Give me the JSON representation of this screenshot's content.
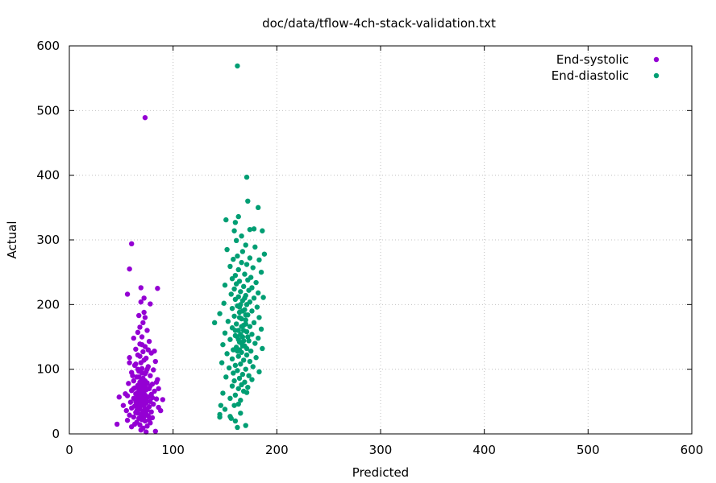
{
  "chart_data": {
    "type": "scatter",
    "title": "doc/data/tflow-4ch-stack-validation.txt",
    "xlabel": "Predicted",
    "ylabel": "Actual",
    "xlim": [
      0,
      600
    ],
    "ylim": [
      0,
      600
    ],
    "xticks": [
      0,
      100,
      200,
      300,
      400,
      500,
      600
    ],
    "yticks": [
      0,
      100,
      200,
      300,
      400,
      500,
      600
    ],
    "grid": true,
    "legend_position": "top-right",
    "series": [
      {
        "name": "End-systolic",
        "color": "#9400d3",
        "points": [
          [
            73,
            489
          ],
          [
            60,
            294
          ],
          [
            58,
            255
          ],
          [
            69,
            226
          ],
          [
            85,
            225
          ],
          [
            56,
            216
          ],
          [
            72,
            210
          ],
          [
            78,
            201
          ],
          [
            69,
            204
          ],
          [
            72,
            188
          ],
          [
            67,
            183
          ],
          [
            73,
            180
          ],
          [
            71,
            172
          ],
          [
            68,
            165
          ],
          [
            75,
            160
          ],
          [
            66,
            157
          ],
          [
            70,
            150
          ],
          [
            62,
            148
          ],
          [
            77,
            143
          ],
          [
            68,
            139
          ],
          [
            73,
            135
          ],
          [
            64,
            131
          ],
          [
            71,
            127
          ],
          [
            79,
            125
          ],
          [
            66,
            122
          ],
          [
            58,
            118
          ],
          [
            74,
            117
          ],
          [
            83,
            112
          ],
          [
            69,
            110
          ],
          [
            63,
            106
          ],
          [
            76,
            104
          ],
          [
            70,
            101
          ],
          [
            81,
            99
          ],
          [
            67,
            97
          ],
          [
            60,
            95
          ],
          [
            73,
            93
          ],
          [
            78,
            90
          ],
          [
            65,
            88
          ],
          [
            71,
            86
          ],
          [
            85,
            84
          ],
          [
            62,
            82
          ],
          [
            68,
            80
          ],
          [
            75,
            79
          ],
          [
            57,
            78
          ],
          [
            80,
            77
          ],
          [
            66,
            75
          ],
          [
            72,
            74
          ],
          [
            69,
            72
          ],
          [
            63,
            71
          ],
          [
            77,
            70
          ],
          [
            74,
            68
          ],
          [
            60,
            67
          ],
          [
            82,
            66
          ],
          [
            67,
            65
          ],
          [
            70,
            63
          ],
          [
            64,
            62
          ],
          [
            79,
            61
          ],
          [
            73,
            60
          ],
          [
            56,
            59
          ],
          [
            68,
            58
          ],
          [
            76,
            57
          ],
          [
            48,
            57
          ],
          [
            71,
            56
          ],
          [
            62,
            55
          ],
          [
            84,
            54
          ],
          [
            66,
            53
          ],
          [
            74,
            52
          ],
          [
            69,
            51
          ],
          [
            78,
            50
          ],
          [
            59,
            49
          ],
          [
            72,
            48
          ],
          [
            65,
            47
          ],
          [
            81,
            46
          ],
          [
            67,
            45
          ],
          [
            70,
            44
          ],
          [
            63,
            43
          ],
          [
            77,
            42
          ],
          [
            86,
            41
          ],
          [
            60,
            40
          ],
          [
            73,
            39
          ],
          [
            68,
            38
          ],
          [
            75,
            37
          ],
          [
            55,
            36
          ],
          [
            71,
            35
          ],
          [
            79,
            34
          ],
          [
            64,
            33
          ],
          [
            66,
            32
          ],
          [
            74,
            31
          ],
          [
            69,
            30
          ],
          [
            58,
            29
          ],
          [
            76,
            28
          ],
          [
            72,
            27
          ],
          [
            62,
            26
          ],
          [
            80,
            25
          ],
          [
            67,
            24
          ],
          [
            70,
            22
          ],
          [
            56,
            21
          ],
          [
            73,
            20
          ],
          [
            65,
            18
          ],
          [
            78,
            17
          ],
          [
            46,
            15
          ],
          [
            68,
            14
          ],
          [
            75,
            12
          ],
          [
            60,
            11
          ],
          [
            71,
            9
          ],
          [
            83,
            4
          ],
          [
            74,
            3
          ],
          [
            69,
            6
          ],
          [
            63,
            15
          ],
          [
            77,
            22
          ],
          [
            70,
            28
          ],
          [
            65,
            36
          ],
          [
            72,
            44
          ],
          [
            68,
            52
          ],
          [
            74,
            58
          ],
          [
            66,
            64
          ],
          [
            71,
            70
          ],
          [
            69,
            76
          ],
          [
            73,
            82
          ],
          [
            67,
            88
          ],
          [
            70,
            94
          ],
          [
            75,
            100
          ],
          [
            64,
            108
          ],
          [
            72,
            114
          ],
          [
            68,
            120
          ],
          [
            76,
            130
          ],
          [
            70,
            138
          ],
          [
            62,
            70
          ],
          [
            78,
            74
          ],
          [
            64,
            50
          ],
          [
            80,
            56
          ],
          [
            66,
            40
          ],
          [
            88,
            36
          ],
          [
            90,
            53
          ],
          [
            54,
            62
          ],
          [
            61,
            90
          ],
          [
            84,
            80
          ],
          [
            52,
            44
          ],
          [
            86,
            70
          ],
          [
            58,
            110
          ],
          [
            82,
            128
          ],
          [
            66,
            100
          ],
          [
            74,
            96
          ],
          [
            70,
            84
          ],
          [
            72,
            66
          ],
          [
            68,
            46
          ],
          [
            74,
            48
          ],
          [
            66,
            58
          ],
          [
            70,
            72
          ],
          [
            72,
            78
          ],
          [
            68,
            62
          ],
          [
            71,
            54
          ],
          [
            69,
            68
          ],
          [
            73,
            74
          ],
          [
            67,
            70
          ],
          [
            71,
            60
          ],
          [
            69,
            56
          ]
        ]
      },
      {
        "name": "End-diastolic",
        "color": "#009e73",
        "points": [
          [
            162,
            569
          ],
          [
            171,
            397
          ],
          [
            172,
            360
          ],
          [
            182,
            350
          ],
          [
            163,
            336
          ],
          [
            151,
            331
          ],
          [
            160,
            327
          ],
          [
            174,
            316
          ],
          [
            186,
            314
          ],
          [
            159,
            314
          ],
          [
            178,
            317
          ],
          [
            166,
            306
          ],
          [
            161,
            299
          ],
          [
            170,
            292
          ],
          [
            179,
            289
          ],
          [
            152,
            285
          ],
          [
            167,
            282
          ],
          [
            188,
            278
          ],
          [
            162,
            275
          ],
          [
            174,
            272
          ],
          [
            158,
            270
          ],
          [
            183,
            269
          ],
          [
            166,
            265
          ],
          [
            171,
            262
          ],
          [
            155,
            259
          ],
          [
            177,
            257
          ],
          [
            163,
            254
          ],
          [
            185,
            250
          ],
          [
            169,
            247
          ],
          [
            160,
            245
          ],
          [
            175,
            242
          ],
          [
            157,
            240
          ],
          [
            172,
            238
          ],
          [
            164,
            236
          ],
          [
            180,
            234
          ],
          [
            161,
            232
          ],
          [
            150,
            230
          ],
          [
            168,
            228
          ],
          [
            176,
            226
          ],
          [
            159,
            224
          ],
          [
            173,
            222
          ],
          [
            165,
            220
          ],
          [
            182,
            218
          ],
          [
            156,
            216
          ],
          [
            170,
            214
          ],
          [
            163,
            212
          ],
          [
            187,
            211
          ],
          [
            178,
            210
          ],
          [
            160,
            208
          ],
          [
            167,
            206
          ],
          [
            174,
            204
          ],
          [
            149,
            202
          ],
          [
            171,
            200
          ],
          [
            162,
            198
          ],
          [
            181,
            196
          ],
          [
            157,
            194
          ],
          [
            169,
            192
          ],
          [
            176,
            190
          ],
          [
            164,
            188
          ],
          [
            145,
            186
          ],
          [
            172,
            184
          ],
          [
            159,
            182
          ],
          [
            183,
            180
          ],
          [
            166,
            178
          ],
          [
            170,
            176
          ],
          [
            153,
            174
          ],
          [
            178,
            172
          ],
          [
            161,
            170
          ],
          [
            140,
            172
          ],
          [
            168,
            168
          ],
          [
            174,
            166
          ],
          [
            157,
            164
          ],
          [
            185,
            162
          ],
          [
            163,
            160
          ],
          [
            171,
            158
          ],
          [
            150,
            156
          ],
          [
            176,
            154
          ],
          [
            160,
            152
          ],
          [
            167,
            150
          ],
          [
            182,
            148
          ],
          [
            155,
            146
          ],
          [
            173,
            144
          ],
          [
            164,
            142
          ],
          [
            179,
            140
          ],
          [
            148,
            138
          ],
          [
            169,
            136
          ],
          [
            161,
            134
          ],
          [
            186,
            132
          ],
          [
            158,
            130
          ],
          [
            175,
            128
          ],
          [
            166,
            126
          ],
          [
            152,
            124
          ],
          [
            171,
            122
          ],
          [
            163,
            120
          ],
          [
            180,
            118
          ],
          [
            157,
            116
          ],
          [
            168,
            114
          ],
          [
            174,
            112
          ],
          [
            147,
            110
          ],
          [
            165,
            108
          ],
          [
            160,
            106
          ],
          [
            177,
            104
          ],
          [
            154,
            102
          ],
          [
            170,
            100
          ],
          [
            162,
            98
          ],
          [
            183,
            96
          ],
          [
            158,
            94
          ],
          [
            167,
            92
          ],
          [
            173,
            90
          ],
          [
            151,
            88
          ],
          [
            164,
            86
          ],
          [
            176,
            84
          ],
          [
            159,
            82
          ],
          [
            169,
            80
          ],
          [
            166,
            76
          ],
          [
            172,
            72
          ],
          [
            157,
            74
          ],
          [
            163,
            70
          ],
          [
            168,
            66
          ],
          [
            148,
            63
          ],
          [
            160,
            60
          ],
          [
            155,
            55
          ],
          [
            165,
            52
          ],
          [
            146,
            44
          ],
          [
            150,
            38
          ],
          [
            159,
            44
          ],
          [
            165,
            32
          ],
          [
            145,
            30
          ],
          [
            155,
            27
          ],
          [
            160,
            20
          ],
          [
            145,
            26
          ],
          [
            162,
            10
          ],
          [
            170,
            13
          ],
          [
            156,
            24
          ],
          [
            163,
            46
          ],
          [
            171,
            64
          ],
          [
            164,
            130
          ],
          [
            166,
            140
          ],
          [
            162,
            150
          ],
          [
            168,
            160
          ],
          [
            170,
            170
          ],
          [
            164,
            180
          ],
          [
            167,
            190
          ],
          [
            165,
            200
          ],
          [
            169,
            210
          ],
          [
            163,
            146
          ],
          [
            171,
            132
          ],
          [
            160,
            160
          ],
          [
            172,
            150
          ],
          [
            166,
            166
          ],
          [
            168,
            144
          ],
          [
            162,
            128
          ],
          [
            170,
            184
          ],
          [
            164,
            196
          ],
          [
            167,
            136
          ],
          [
            165,
            154
          ]
        ]
      }
    ]
  }
}
